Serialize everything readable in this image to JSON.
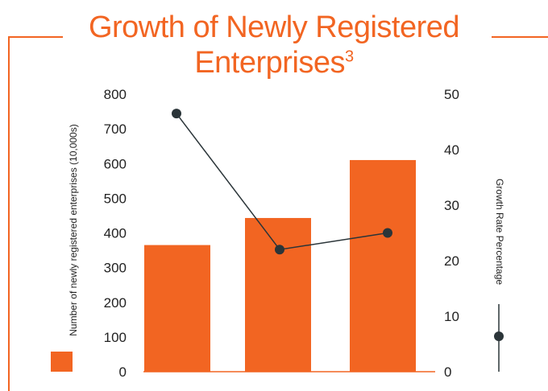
{
  "title": "Growth of Newly Registered",
  "title_line2": "Enterprises",
  "title_footnote": "3",
  "colors": {
    "accent": "#f26522",
    "bar": "#f26522",
    "line": "#2b3539",
    "text": "#222222"
  },
  "chart_data": {
    "type": "bar",
    "categories": [
      "",
      "",
      ""
    ],
    "series": [
      {
        "name": "",
        "type": "bar",
        "axis": "left",
        "values": [
          365,
          443,
          610
        ]
      },
      {
        "name": "",
        "type": "line",
        "axis": "right",
        "values": [
          46.5,
          22,
          25
        ]
      }
    ],
    "ylabel": "Number of newly registered enterprises (10,000s)",
    "y2label": "Growth Rate Percentage",
    "ylim": [
      0,
      800
    ],
    "y2lim": [
      0,
      50
    ],
    "yticks": [
      0,
      100,
      200,
      300,
      400,
      500,
      600,
      700,
      800
    ],
    "y2ticks": [
      0,
      10,
      20,
      30,
      40,
      50
    ],
    "grid": false
  }
}
